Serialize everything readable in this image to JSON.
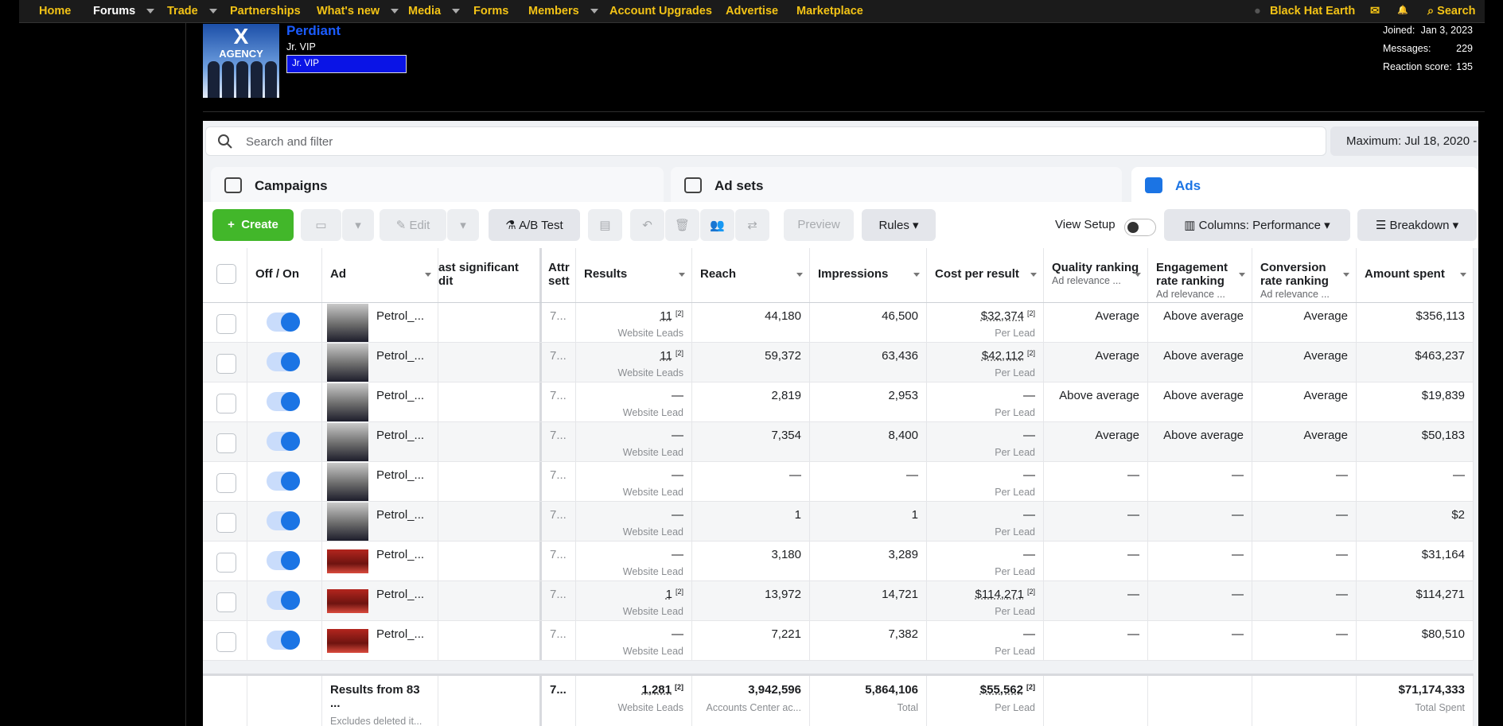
{
  "nav": {
    "items": [
      {
        "label": "Home",
        "menu": false
      },
      {
        "label": "Forums",
        "menu": true
      },
      {
        "label": "Trade",
        "menu": true
      },
      {
        "label": "Partnerships",
        "menu": false
      },
      {
        "label": "What's new",
        "menu": true
      },
      {
        "label": "Media",
        "menu": true
      },
      {
        "label": "Forms",
        "menu": false
      },
      {
        "label": "Members",
        "menu": true
      },
      {
        "label": "Account Upgrades",
        "menu": false
      },
      {
        "label": "Advertise",
        "menu": false
      },
      {
        "label": "Marketplace",
        "menu": false
      }
    ],
    "site": "Black Hat Earth",
    "search": "Search"
  },
  "profile": {
    "avatar_letter": "X",
    "avatar_text": "AGENCY",
    "name": "Perdiant",
    "user_title": "Jr. VIP",
    "banner": "Jr. VIP",
    "stats": [
      {
        "label": "Joined:",
        "value": "Jan 3, 2023"
      },
      {
        "label": "Messages:",
        "value": "229"
      },
      {
        "label": "Reaction score:",
        "value": "135"
      }
    ]
  },
  "ads_manager": {
    "search_placeholder": "Search and filter",
    "date_range": "Maximum: Jul 18, 2020 -",
    "tabs": [
      "Campaigns",
      "Ad sets",
      "Ads"
    ],
    "toolbar": {
      "create": "Create",
      "edit": "Edit",
      "ab_test": "A/B Test",
      "preview": "Preview",
      "rules": "Rules",
      "view_setup": "View Setup",
      "columns": "Columns: Performance",
      "breakdown": "Breakdown"
    },
    "table": {
      "columns": [
        {
          "label": "Off / On"
        },
        {
          "label": "Ad"
        },
        {
          "label": "ast significant dit"
        },
        {
          "label": "Attr sett"
        },
        {
          "label": "Results"
        },
        {
          "label": "Reach"
        },
        {
          "label": "Impressions"
        },
        {
          "label": "Cost per result"
        },
        {
          "label": "Quality ranking",
          "sub": "Ad relevance ..."
        },
        {
          "label": "Engagement rate ranking",
          "sub": "Ad relevance ..."
        },
        {
          "label": "Conversion rate ranking",
          "sub": "Ad relevance ..."
        },
        {
          "label": "Amount spent"
        }
      ],
      "rows": [
        {
          "ad": "Petrol_...",
          "attr": "7...",
          "results": "11",
          "results_note": "[2]",
          "results_type": "Website Leads",
          "reach": "44,180",
          "impressions": "46,500",
          "cost": "$32,374",
          "cost_note": "[2]",
          "cost_type": "Per Lead",
          "quality": "Average",
          "engagement": "Above average",
          "conversion": "Average",
          "amount": "$356,113"
        },
        {
          "ad": "Petrol_...",
          "attr": "7...",
          "results": "11",
          "results_note": "[2]",
          "results_type": "Website Leads",
          "reach": "59,372",
          "impressions": "63,436",
          "cost": "$42,112",
          "cost_note": "[2]",
          "cost_type": "Per Lead",
          "quality": "Average",
          "engagement": "Above average",
          "conversion": "Average",
          "amount": "$463,237"
        },
        {
          "ad": "Petrol_...",
          "attr": "7...",
          "results": "—",
          "results_type": "Website Lead",
          "reach": "2,819",
          "impressions": "2,953",
          "cost": "—",
          "cost_type": "Per Lead",
          "quality": "Above average",
          "engagement": "Above average",
          "conversion": "Average",
          "amount": "$19,839"
        },
        {
          "ad": "Petrol_...",
          "attr": "7...",
          "results": "—",
          "results_type": "Website Lead",
          "reach": "7,354",
          "impressions": "8,400",
          "cost": "—",
          "cost_type": "Per Lead",
          "quality": "Average",
          "engagement": "Above average",
          "conversion": "Average",
          "amount": "$50,183"
        },
        {
          "ad": "Petrol_...",
          "attr": "7...",
          "results": "—",
          "results_type": "Website Lead",
          "reach": "—",
          "impressions": "—",
          "cost": "—",
          "cost_type": "Per Lead",
          "quality": "—",
          "engagement": "—",
          "conversion": "—",
          "amount": "—"
        },
        {
          "ad": "Petrol_...",
          "attr": "7...",
          "results": "—",
          "results_type": "Website Lead",
          "reach": "1",
          "impressions": "1",
          "cost": "—",
          "cost_type": "Per Lead",
          "quality": "—",
          "engagement": "—",
          "conversion": "—",
          "amount": "$2"
        },
        {
          "ad": "Petrol_...",
          "attr": "7...",
          "results": "—",
          "results_type": "Website Lead",
          "reach": "3,180",
          "impressions": "3,289",
          "cost": "—",
          "cost_type": "Per Lead",
          "quality": "—",
          "engagement": "—",
          "conversion": "—",
          "amount": "$31,164"
        },
        {
          "ad": "Petrol_...",
          "attr": "7...",
          "results": "1",
          "results_note": "[2]",
          "results_type": "Website Lead",
          "reach": "13,972",
          "impressions": "14,721",
          "cost": "$114,271",
          "cost_note": "[2]",
          "cost_type": "Per Lead",
          "quality": "—",
          "engagement": "—",
          "conversion": "—",
          "amount": "$114,271"
        },
        {
          "ad": "Petrol_...",
          "attr": "7...",
          "results": "—",
          "results_type": "Website Lead",
          "reach": "7,221",
          "impressions": "7,382",
          "cost": "—",
          "cost_type": "Per Lead",
          "quality": "—",
          "engagement": "—",
          "conversion": "—",
          "amount": "$80,510"
        }
      ],
      "totals": {
        "ad": "Results from 83 ...",
        "ad_sub": "Excludes deleted it...",
        "attr": "7...",
        "results": "1,281",
        "results_note": "[2]",
        "results_type": "Website Leads",
        "reach": "3,942,596",
        "reach_sub": "Accounts Center ac...",
        "impressions": "5,864,106",
        "impressions_sub": "Total",
        "cost": "$55,562",
        "cost_note": "[2]",
        "cost_type": "Per Lead",
        "amount": "$71,174,333",
        "amount_sub": "Total Spent"
      }
    }
  }
}
